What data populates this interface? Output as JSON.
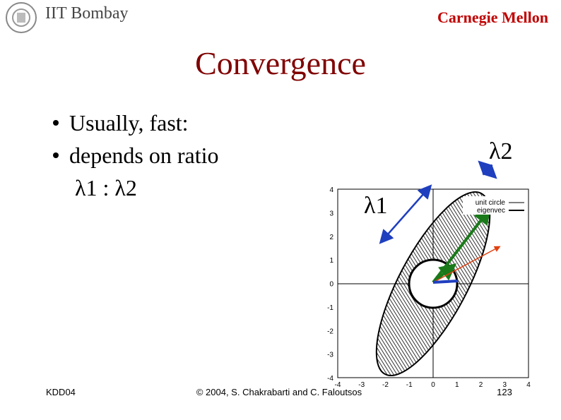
{
  "header": {
    "left": "IIT Bombay",
    "right": "Carnegie Mellon"
  },
  "title": "Convergence",
  "bullets": [
    "Usually, fast:",
    "depends on ratio"
  ],
  "sub_item": "λ1 : λ2",
  "figure": {
    "xticks": [
      -4,
      -3,
      -2,
      -1,
      0,
      1,
      2,
      3,
      4
    ],
    "yticks": [
      -4,
      -3,
      -2,
      -1,
      0,
      1,
      2,
      3,
      4
    ],
    "xlim": [
      -4,
      4
    ],
    "ylim": [
      -4,
      4
    ],
    "legend": [
      "unit circle",
      "eigenvec"
    ],
    "annotations": [
      "λ1",
      "λ2"
    ]
  },
  "footer": {
    "left": "KDD04",
    "center": "© 2004, S. Chakrabarti and C. Faloutsos",
    "page": "123"
  }
}
